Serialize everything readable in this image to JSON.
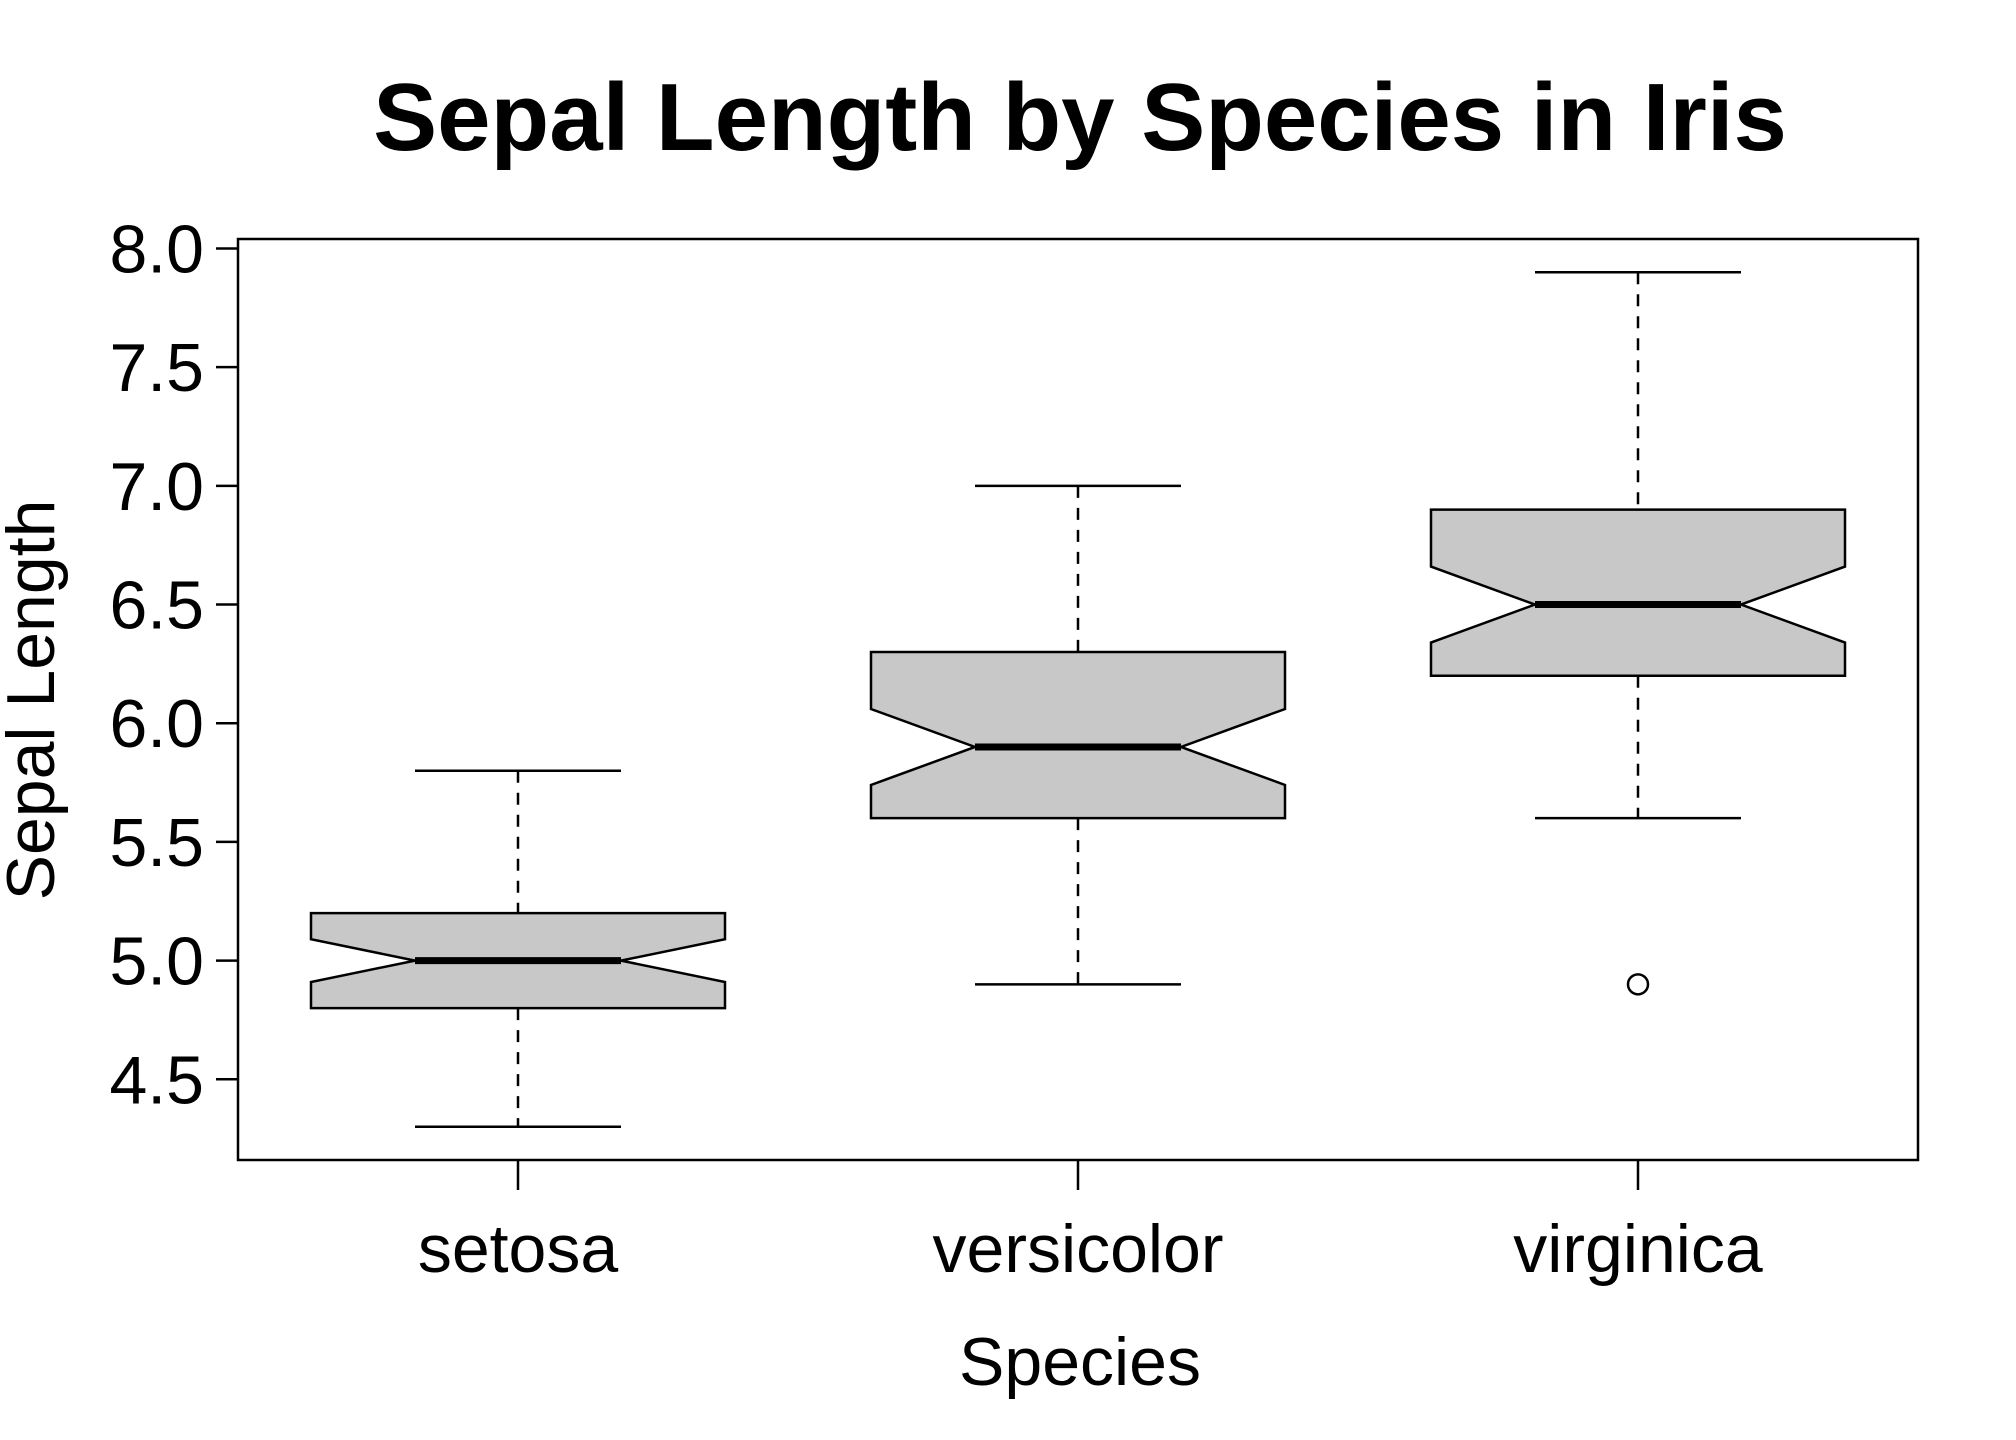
{
  "chart_data": {
    "type": "boxplot",
    "title": "Sepal Length by Species in Iris",
    "xlabel": "Species",
    "ylabel": "Sepal Length",
    "ylim": [
      4.16,
      8.04
    ],
    "yticks": [
      "4.5",
      "5.0",
      "5.5",
      "6.0",
      "6.5",
      "7.0",
      "7.5",
      "8.0"
    ],
    "notched": true,
    "box_fill": "#c8c8c8",
    "grid": false,
    "legend": "none",
    "categories": [
      "setosa",
      "versicolor",
      "virginica"
    ],
    "series": [
      {
        "category": "setosa",
        "whisker_low": 4.3,
        "q1": 4.8,
        "median": 5.0,
        "q3": 5.2,
        "whisker_high": 5.8,
        "notch_low": 4.91,
        "notch_high": 5.09,
        "outliers": []
      },
      {
        "category": "versicolor",
        "whisker_low": 4.9,
        "q1": 5.6,
        "median": 5.9,
        "q3": 6.3,
        "whisker_high": 7.0,
        "notch_low": 5.74,
        "notch_high": 6.06,
        "outliers": []
      },
      {
        "category": "virginica",
        "whisker_low": 5.6,
        "q1": 6.2,
        "median": 6.5,
        "q3": 6.9,
        "whisker_high": 7.9,
        "notch_low": 6.34,
        "notch_high": 6.66,
        "outliers": [
          4.9
        ]
      }
    ]
  }
}
